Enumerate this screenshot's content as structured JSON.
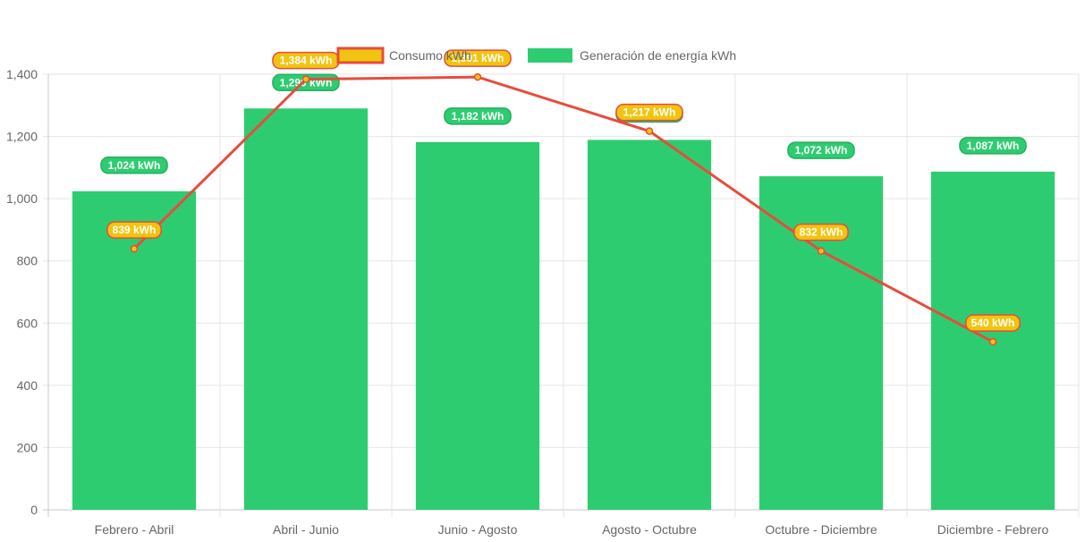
{
  "chart_data": {
    "type": "bar",
    "categories": [
      "Febrero - Abril",
      "Abril - Junio",
      "Junio - Agosto",
      "Agosto - Octubre",
      "Octubre - Diciembre",
      "Diciembre - Febrero"
    ],
    "ylim": [
      0,
      1400
    ],
    "yticks": [
      "0",
      "200",
      "400",
      "600",
      "800",
      "1,000",
      "1,200",
      "1,400"
    ],
    "grid": true,
    "legend_position": "top",
    "series": [
      {
        "name": "Consumo kWh",
        "type": "line",
        "color": "#e74c3c",
        "fill": "#f1c40f",
        "values": [
          839,
          1384,
          1391,
          1217,
          832,
          540
        ],
        "labels": [
          "839 kWh",
          "1,384 kWh",
          "1,391 kWh",
          "1,217 kWh",
          "832 kWh",
          "540 kWh"
        ]
      },
      {
        "name": "Generación de energía kWh",
        "type": "bar",
        "color": "#2ecc71",
        "values": [
          1024,
          1290,
          1182,
          1189,
          1072,
          1087
        ],
        "labels": [
          "1,024 kWh",
          "1,290 kWh",
          "1,182 kWh",
          "1,189 kWh",
          "1,072 kWh",
          "1,087 kWh"
        ]
      }
    ]
  }
}
